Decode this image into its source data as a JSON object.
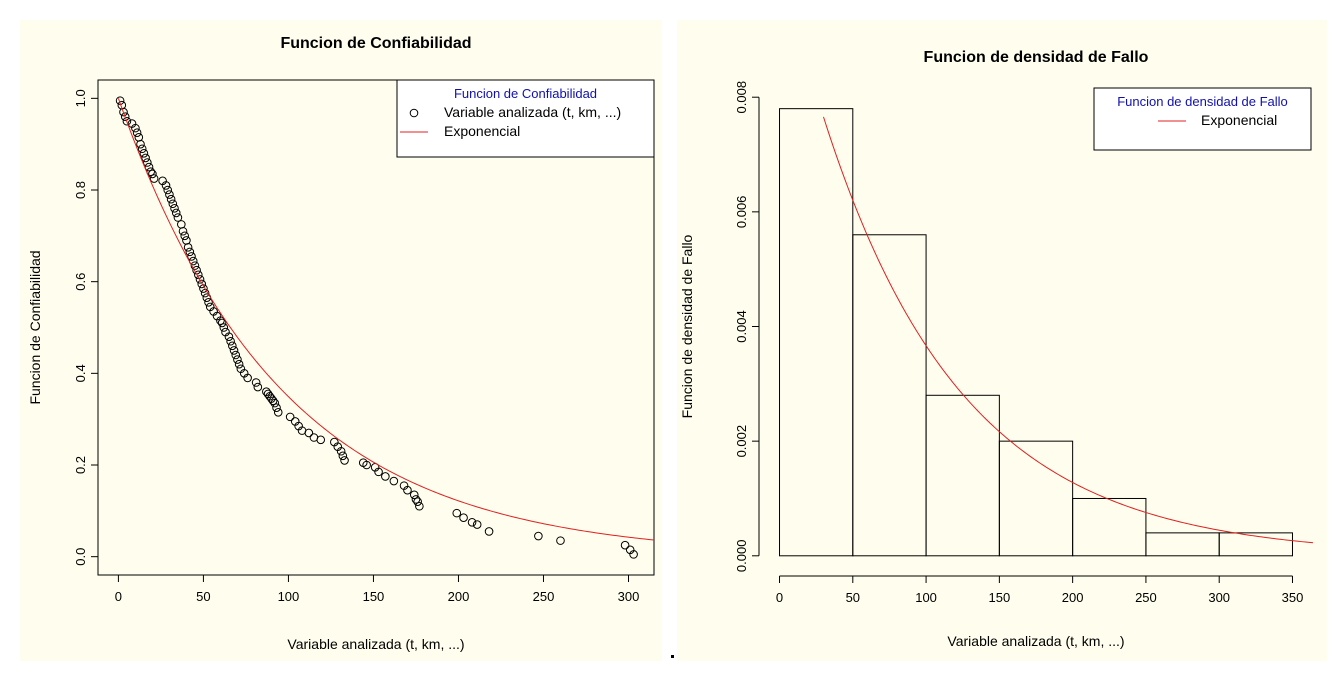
{
  "chart_data": [
    {
      "type": "scatter",
      "title": "Funcion de Confiabilidad",
      "xlabel": "Variable analizada (t, km, ...)",
      "ylabel": "Funcion de Confiabilidad",
      "xlim": [
        -12,
        315
      ],
      "ylim": [
        -0.04,
        1.04
      ],
      "xticks": [
        0,
        50,
        100,
        150,
        200,
        250,
        300
      ],
      "yticks": [
        0.0,
        0.2,
        0.4,
        0.6,
        0.8,
        1.0
      ],
      "xtick_labels": [
        "0",
        "50",
        "100",
        "150",
        "200",
        "250",
        "300"
      ],
      "ytick_labels": [
        "0.0",
        "0.2",
        "0.4",
        "0.6",
        "0.8",
        "1.0"
      ],
      "legend": {
        "title": "Funcion de Confiabilidad",
        "title_color": "#1010b0",
        "entries": [
          "Variable analizada (t, km, ...)",
          "Exponencial"
        ],
        "placement": "top-right"
      },
      "series": [
        {
          "name": "Variable analizada (t, km, ...)",
          "kind": "points",
          "x": [
            1,
            2,
            3,
            4,
            5,
            8,
            10,
            11,
            12,
            13,
            14,
            15,
            16,
            17,
            18,
            19,
            20,
            21,
            26,
            28,
            29,
            30,
            31,
            32,
            33,
            34,
            35,
            37,
            38,
            39,
            40,
            41,
            42,
            43,
            44,
            45,
            46,
            47,
            48,
            49,
            50,
            51,
            52,
            53,
            54,
            56,
            58,
            60,
            61,
            62,
            63,
            65,
            66,
            67,
            68,
            69,
            70,
            71,
            72,
            74,
            76,
            81,
            82,
            87,
            88,
            89,
            90,
            91,
            92,
            93,
            94,
            101,
            104,
            106,
            108,
            112,
            115,
            119,
            127,
            129,
            131,
            132,
            133,
            144,
            146,
            151,
            153,
            157,
            162,
            168,
            170,
            174,
            175,
            176,
            177,
            199,
            203,
            208,
            211,
            218,
            247,
            260,
            298,
            301,
            303
          ],
          "y": [
            0.995,
            0.985,
            0.97,
            0.96,
            0.95,
            0.945,
            0.935,
            0.925,
            0.915,
            0.9,
            0.89,
            0.88,
            0.87,
            0.86,
            0.85,
            0.84,
            0.835,
            0.825,
            0.82,
            0.81,
            0.8,
            0.79,
            0.78,
            0.77,
            0.76,
            0.75,
            0.74,
            0.725,
            0.71,
            0.7,
            0.69,
            0.675,
            0.665,
            0.655,
            0.645,
            0.635,
            0.625,
            0.615,
            0.605,
            0.595,
            0.585,
            0.575,
            0.565,
            0.555,
            0.545,
            0.535,
            0.525,
            0.515,
            0.51,
            0.5,
            0.49,
            0.48,
            0.47,
            0.46,
            0.45,
            0.44,
            0.43,
            0.42,
            0.41,
            0.4,
            0.39,
            0.38,
            0.37,
            0.36,
            0.355,
            0.35,
            0.345,
            0.34,
            0.335,
            0.325,
            0.315,
            0.305,
            0.295,
            0.285,
            0.275,
            0.27,
            0.26,
            0.255,
            0.25,
            0.24,
            0.23,
            0.22,
            0.21,
            0.205,
            0.2,
            0.195,
            0.185,
            0.175,
            0.165,
            0.155,
            0.145,
            0.135,
            0.125,
            0.12,
            0.11,
            0.095,
            0.085,
            0.075,
            0.07,
            0.055,
            0.045,
            0.035,
            0.025,
            0.015,
            0.005
          ],
          "color": "#000000"
        },
        {
          "name": "Exponencial",
          "kind": "line",
          "function": "exp(-x/95)",
          "x_range": [
            0,
            315
          ],
          "color": "#e02020"
        }
      ]
    },
    {
      "type": "bar",
      "title": "Funcion de densidad de Fallo",
      "xlabel": "Variable analizada (t, km, ...)",
      "ylabel": "Funcion de densidad de Fallo",
      "xlim": [
        -14,
        364
      ],
      "ylim": [
        -0.0003,
        0.0083
      ],
      "xticks": [
        0,
        50,
        100,
        150,
        200,
        250,
        300,
        350
      ],
      "yticks": [
        0.0,
        0.002,
        0.004,
        0.006,
        0.008
      ],
      "xtick_labels": [
        "0",
        "50",
        "100",
        "150",
        "200",
        "250",
        "300",
        "350"
      ],
      "ytick_labels": [
        "0.000",
        "0.002",
        "0.004",
        "0.006",
        "0.008"
      ],
      "bins": [
        [
          0,
          50
        ],
        [
          50,
          100
        ],
        [
          100,
          150
        ],
        [
          150,
          200
        ],
        [
          200,
          250
        ],
        [
          250,
          300
        ],
        [
          300,
          350
        ]
      ],
      "values": [
        0.0078,
        0.0056,
        0.0028,
        0.002,
        0.001,
        0.0004,
        0.0004
      ],
      "legend": {
        "title": "Funcion de densidad de Fallo",
        "title_color": "#1010b0",
        "entries": [
          "Exponencial"
        ],
        "placement": "top-right"
      },
      "series": [
        {
          "name": "Exponencial",
          "kind": "line",
          "function": "0.0105*exp(-x/95)",
          "x_range": [
            30,
            364
          ],
          "color": "#e02020"
        }
      ]
    }
  ]
}
